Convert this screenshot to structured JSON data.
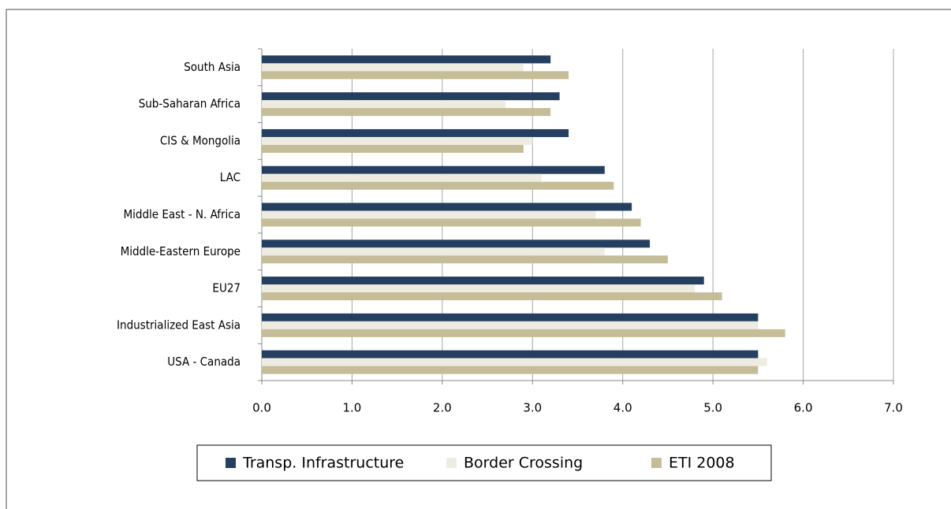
{
  "chart_data": {
    "type": "bar",
    "orientation": "horizontal",
    "categories": [
      "South Asia",
      "Sub-Saharan Africa",
      "CIS & Mongolia",
      "LAC",
      "Middle East - N. Africa",
      "Middle-Eastern Europe",
      "EU27",
      "Industrialized East Asia",
      "USA - Canada"
    ],
    "series": [
      {
        "name": "Transp. Infrastructure",
        "color": "#243f60",
        "values": [
          3.2,
          3.3,
          3.4,
          3.8,
          4.1,
          4.3,
          4.9,
          5.5,
          5.5
        ]
      },
      {
        "name": "Border Crossing",
        "color": "#eeece1",
        "values": [
          2.9,
          2.7,
          3.0,
          3.1,
          3.7,
          3.8,
          4.8,
          5.5,
          5.6
        ]
      },
      {
        "name": "ETI 2008",
        "color": "#c4bd97",
        "values": [
          3.4,
          3.2,
          2.9,
          3.9,
          4.2,
          4.5,
          5.1,
          5.8,
          5.5
        ]
      }
    ],
    "xlim": [
      0,
      7
    ],
    "xticks": [
      {
        "value": 0,
        "label": "0.0"
      },
      {
        "value": 1,
        "label": "1.0"
      },
      {
        "value": 2,
        "label": "2.0"
      },
      {
        "value": 3,
        "label": "3.0"
      },
      {
        "value": 4,
        "label": "4.0"
      },
      {
        "value": 5,
        "label": "5.0"
      },
      {
        "value": 6,
        "label": "6.0"
      },
      {
        "value": 7,
        "label": "7.0"
      }
    ],
    "grid": true,
    "legend": "bottom"
  }
}
